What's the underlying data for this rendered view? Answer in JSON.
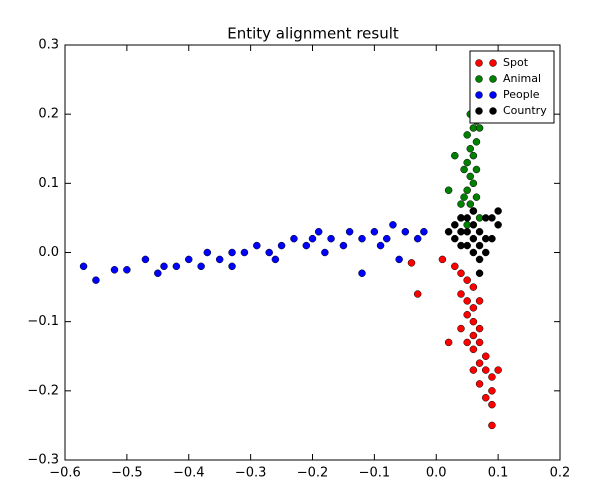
{
  "chart_data": {
    "type": "scatter",
    "title": "Entity alignment result",
    "legend": "upper right",
    "xlim": [
      -0.6,
      0.2
    ],
    "ylim": [
      -0.3,
      0.3
    ],
    "xticks": [
      {
        "value": -0.6,
        "label": "−0.6"
      },
      {
        "value": -0.5,
        "label": "−0.5"
      },
      {
        "value": -0.4,
        "label": "−0.4"
      },
      {
        "value": -0.3,
        "label": "−0.3"
      },
      {
        "value": -0.2,
        "label": "−0.2"
      },
      {
        "value": -0.1,
        "label": "−0.1"
      },
      {
        "value": 0,
        "label": "0.0"
      },
      0.1,
      0.2
    ],
    "yticks": [
      {
        "value": -0.3,
        "label": "−0.3"
      },
      {
        "value": -0.2,
        "label": "−0.2"
      },
      {
        "value": -0.1,
        "label": "−0.1"
      },
      {
        "value": 0,
        "label": "0.0"
      },
      0.1,
      0.2,
      0.3
    ],
    "series": [
      {
        "name": "Spot",
        "color": "#ff0000",
        "x": [
          0.01,
          -0.03,
          0.03,
          0.04,
          0.05,
          0.06,
          0.04,
          0.05,
          0.06,
          0.07,
          0.05,
          0.06,
          0.04,
          0.07,
          0.06,
          0.05,
          0.07,
          0.06,
          0.08,
          0.07,
          0.06,
          0.08,
          0.09,
          0.07,
          0.09,
          0.08,
          0.1,
          0.09,
          0.09,
          0.02,
          -0.04
        ],
        "values": [
          -0.01,
          -0.06,
          -0.02,
          -0.03,
          -0.04,
          -0.05,
          -0.06,
          -0.07,
          -0.08,
          -0.07,
          -0.09,
          -0.1,
          -0.11,
          -0.11,
          -0.12,
          -0.13,
          -0.13,
          -0.14,
          -0.15,
          -0.16,
          -0.17,
          -0.17,
          -0.18,
          -0.19,
          -0.2,
          -0.21,
          -0.17,
          -0.22,
          -0.25,
          -0.13,
          -0.015
        ]
      },
      {
        "name": "Animal",
        "color": "#008000",
        "x": [
          0.06,
          0.055,
          0.065,
          0.06,
          0.07,
          0.05,
          0.065,
          0.03,
          0.055,
          0.06,
          0.05,
          0.065,
          0.045,
          0.055,
          0.06,
          0.05,
          0.065,
          0.045,
          0.055,
          0.06,
          0.04,
          0.07,
          0.05,
          0.04,
          0.02
        ],
        "values": [
          0.22,
          0.2,
          0.19,
          0.18,
          0.18,
          0.17,
          0.16,
          0.14,
          0.15,
          0.14,
          0.13,
          0.12,
          0.12,
          0.11,
          0.1,
          0.09,
          0.08,
          0.08,
          0.07,
          0.06,
          0.05,
          0.05,
          0.04,
          0.07,
          0.09
        ]
      },
      {
        "name": "People",
        "color": "#0000ff",
        "x": [
          -0.57,
          -0.55,
          -0.52,
          -0.5,
          -0.47,
          -0.45,
          -0.44,
          -0.42,
          -0.4,
          -0.38,
          -0.37,
          -0.35,
          -0.33,
          -0.31,
          -0.29,
          -0.27,
          -0.25,
          -0.23,
          -0.21,
          -0.2,
          -0.18,
          -0.17,
          -0.15,
          -0.14,
          -0.12,
          -0.1,
          -0.08,
          -0.07,
          -0.05,
          -0.03,
          -0.02,
          -0.12,
          -0.06,
          -0.33,
          -0.26,
          -0.19,
          -0.09
        ],
        "values": [
          -0.02,
          -0.04,
          -0.025,
          -0.025,
          -0.01,
          -0.03,
          -0.02,
          -0.02,
          -0.01,
          -0.02,
          0.0,
          -0.01,
          0.0,
          0.0,
          0.01,
          0.0,
          0.01,
          0.02,
          0.01,
          0.02,
          0.0,
          0.02,
          0.01,
          0.03,
          0.02,
          0.03,
          0.02,
          0.04,
          0.03,
          0.02,
          0.03,
          -0.03,
          -0.01,
          -0.02,
          -0.01,
          0.03,
          0.01
        ]
      },
      {
        "name": "Country",
        "color": "#000000",
        "x": [
          0.03,
          0.04,
          0.05,
          0.06,
          0.07,
          0.08,
          0.09,
          0.1,
          0.1,
          0.05,
          0.06,
          0.07,
          0.04,
          0.08,
          0.05,
          0.03,
          0.06,
          0.07,
          0.08,
          0.07,
          0.09,
          0.04,
          0.06,
          0.02
        ],
        "values": [
          0.04,
          0.03,
          0.03,
          0.04,
          0.03,
          0.02,
          0.05,
          0.06,
          0.04,
          0.01,
          0.0,
          0.01,
          0.05,
          0.05,
          0.05,
          0.02,
          0.02,
          -0.01,
          0.0,
          -0.03,
          0.02,
          0.01,
          0.06,
          0.03
        ]
      }
    ]
  }
}
